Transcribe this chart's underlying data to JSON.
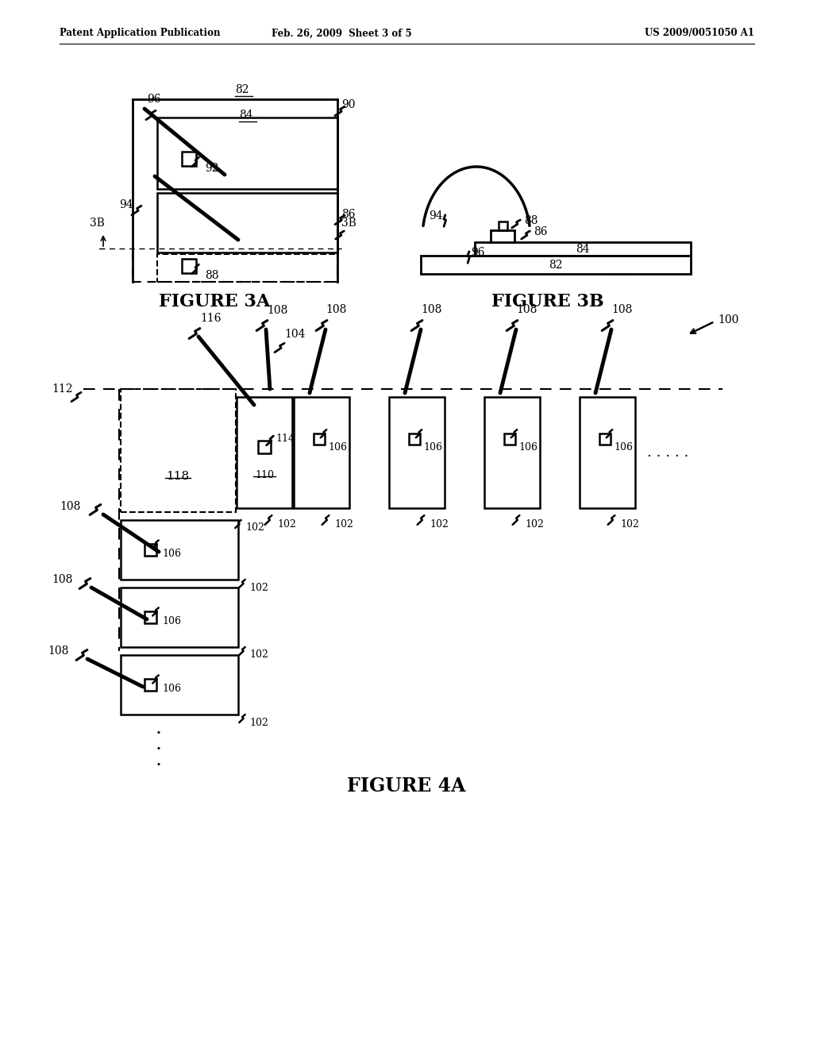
{
  "header_left": "Patent Application Publication",
  "header_mid": "Feb. 26, 2009  Sheet 3 of 5",
  "header_right": "US 2009/0051050 A1",
  "fig3a_label": "FIGURE 3A",
  "fig3b_label": "FIGURE 3B",
  "fig4a_label": "FIGURE 4A",
  "bg_color": "#ffffff",
  "line_color": "#000000"
}
